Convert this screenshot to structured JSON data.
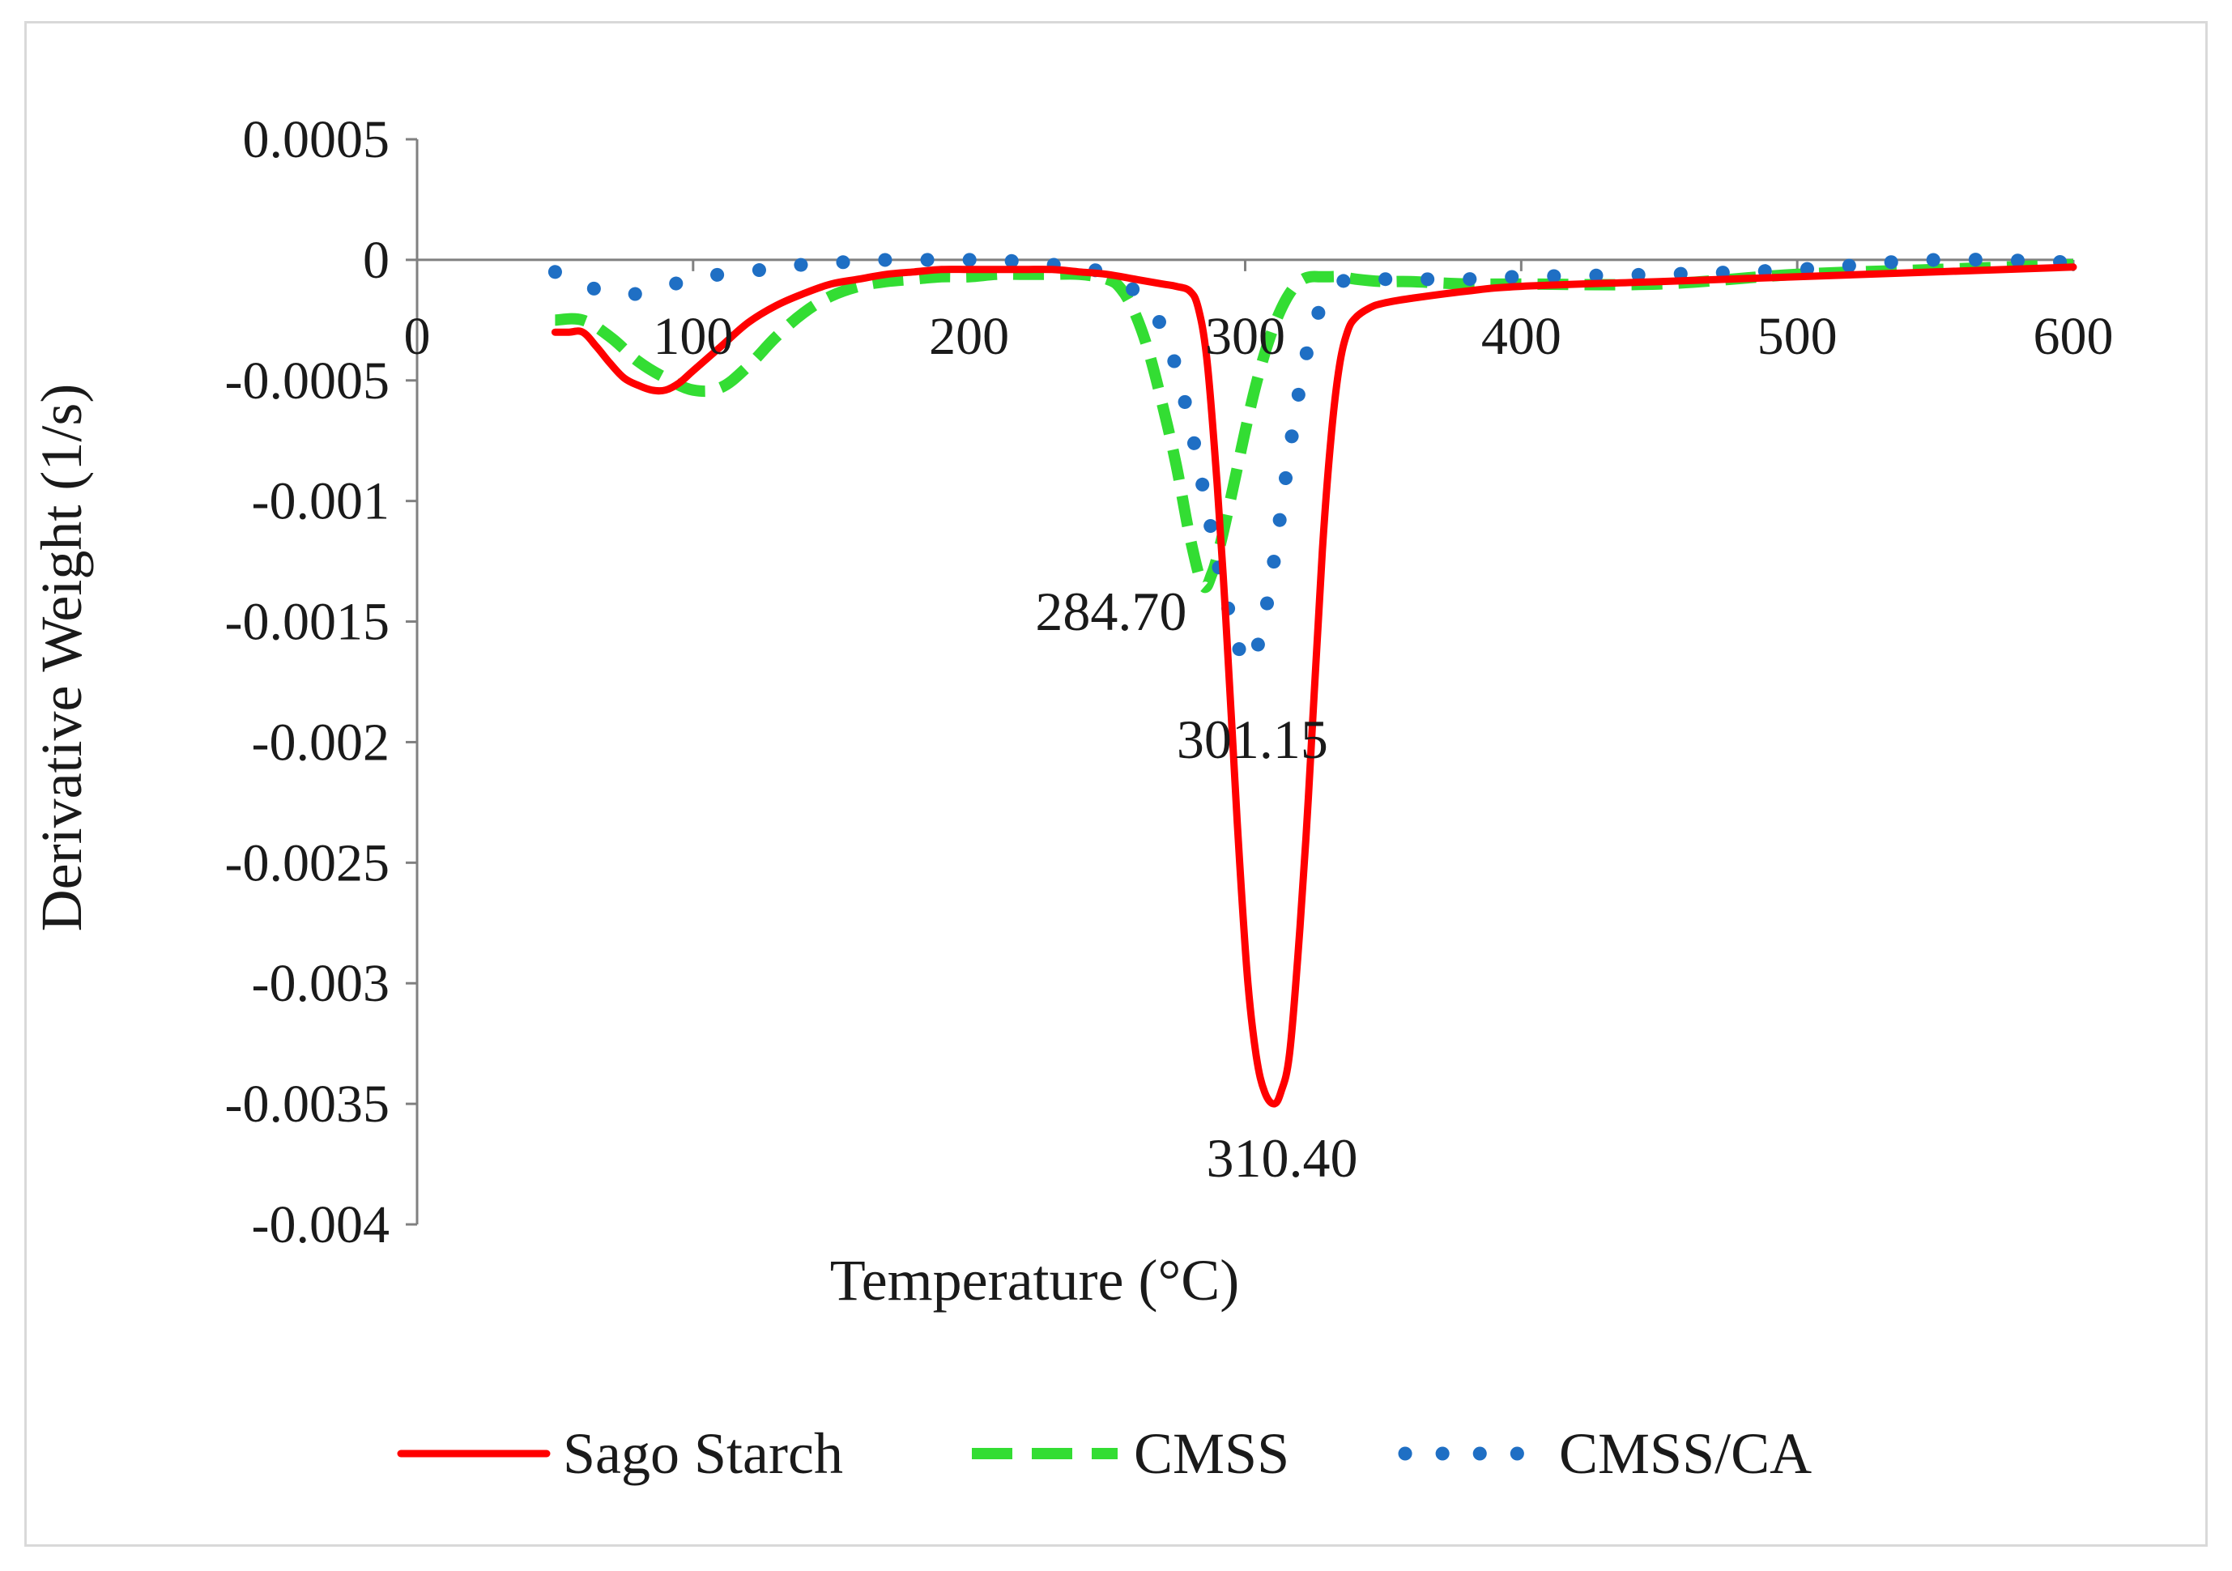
{
  "chart_data": {
    "type": "line",
    "title": "",
    "xlabel": "Temperature (°C)",
    "ylabel": "Derivative Weight (1/s)",
    "xlim": [
      0,
      600
    ],
    "ylim": [
      -0.004,
      0.0005
    ],
    "x_ticks": [
      "0",
      "100",
      "200",
      "300",
      "400",
      "500",
      "600"
    ],
    "y_ticks": [
      "0.0005",
      "0",
      "-0.0005",
      "-0.001",
      "-0.0015",
      "-0.002",
      "-0.0025",
      "-0.003",
      "-0.0035",
      "-0.004"
    ],
    "grid": false,
    "legend_position": "bottom",
    "series": [
      {
        "name": "Sago Starch",
        "color": "#ff0000",
        "style": "solid",
        "x": [
          50,
          55,
          60,
          65,
          70,
          75,
          80,
          85,
          90,
          95,
          100,
          110,
          120,
          130,
          140,
          150,
          160,
          170,
          180,
          190,
          200,
          210,
          220,
          230,
          240,
          250,
          260,
          270,
          275,
          280,
          283,
          286,
          289,
          292,
          295,
          298,
          301,
          304,
          307,
          310.4,
          313,
          316,
          319,
          322,
          325,
          328,
          331,
          334,
          337,
          340,
          345,
          350,
          360,
          380,
          400,
          450,
          500,
          550,
          600
        ],
        "y": [
          -0.0003,
          -0.0003,
          -0.0003,
          -0.00036,
          -0.00043,
          -0.00049,
          -0.00052,
          -0.00054,
          -0.00054,
          -0.00051,
          -0.00046,
          -0.00036,
          -0.00026,
          -0.00019,
          -0.00014,
          -0.0001,
          -8e-05,
          -6e-05,
          -5e-05,
          -4e-05,
          -4e-05,
          -4e-05,
          -4e-05,
          -4e-05,
          -5e-05,
          -6e-05,
          -8e-05,
          -0.0001,
          -0.00011,
          -0.00013,
          -0.0002,
          -0.0004,
          -0.0008,
          -0.0013,
          -0.0019,
          -0.0025,
          -0.003,
          -0.0033,
          -0.00345,
          -0.0035,
          -0.00345,
          -0.0033,
          -0.0029,
          -0.0024,
          -0.0018,
          -0.0012,
          -0.00075,
          -0.00045,
          -0.0003,
          -0.00024,
          -0.0002,
          -0.00018,
          -0.00016,
          -0.00013,
          -0.00011,
          -9e-05,
          -7e-05,
          -5e-05,
          -3e-05
        ]
      },
      {
        "name": "CMSS",
        "color": "#33dd33",
        "style": "dashed",
        "x": [
          50,
          60,
          70,
          80,
          90,
          100,
          110,
          120,
          130,
          140,
          150,
          160,
          170,
          180,
          190,
          200,
          210,
          220,
          230,
          240,
          250,
          255,
          260,
          265,
          270,
          275,
          280,
          284.7,
          288,
          291,
          294,
          297,
          300,
          303,
          306,
          309,
          312,
          315,
          318,
          321,
          324,
          327,
          330,
          335,
          340,
          350,
          360,
          380,
          400,
          450,
          500,
          550,
          600
        ],
        "y": [
          -0.00025,
          -0.00025,
          -0.00032,
          -0.00042,
          -0.00049,
          -0.00054,
          -0.00053,
          -0.00044,
          -0.00032,
          -0.00022,
          -0.00015,
          -0.00011,
          -9e-05,
          -8e-05,
          -7e-05,
          -7e-05,
          -6e-05,
          -6e-05,
          -6e-05,
          -6e-05,
          -8e-05,
          -0.00012,
          -0.00022,
          -0.00038,
          -0.0006,
          -0.00085,
          -0.00115,
          -0.00135,
          -0.0013,
          -0.00118,
          -0.00103,
          -0.00087,
          -0.00071,
          -0.00056,
          -0.00043,
          -0.00032,
          -0.00023,
          -0.00016,
          -0.00011,
          -8e-05,
          -7e-05,
          -7e-05,
          -7e-05,
          -7e-05,
          -8e-05,
          -9e-05,
          -9e-05,
          -0.0001,
          -0.0001,
          -0.0001,
          -6e-05,
          -4e-05,
          -2e-05
        ]
      },
      {
        "name": "CMSS/CA",
        "color": "#1f6fc4",
        "style": "dotted",
        "x": [
          50,
          60,
          70,
          80,
          90,
          100,
          110,
          120,
          130,
          140,
          150,
          160,
          170,
          180,
          190,
          200,
          210,
          220,
          230,
          240,
          250,
          260,
          270,
          275,
          280,
          285,
          290,
          295,
          298,
          301.15,
          304,
          307,
          310,
          313,
          316,
          319,
          322,
          325,
          328,
          331,
          335,
          340,
          350,
          360,
          380,
          400,
          450,
          500,
          550,
          600
        ],
        "y": [
          -5e-05,
          -0.0001,
          -0.00014,
          -0.00014,
          -0.00011,
          -8e-05,
          -6e-05,
          -5e-05,
          -3e-05,
          -2e-05,
          -1e-05,
          -1e-05,
          0,
          0,
          0,
          0,
          0,
          -1e-05,
          -2e-05,
          -3e-05,
          -6e-05,
          -0.00013,
          -0.00028,
          -0.00045,
          -0.00068,
          -0.00096,
          -0.00125,
          -0.0015,
          -0.00162,
          -0.00168,
          -0.00162,
          -0.00148,
          -0.00128,
          -0.00104,
          -0.0008,
          -0.00058,
          -0.0004,
          -0.00027,
          -0.00018,
          -0.00012,
          -9e-05,
          -8e-05,
          -8e-05,
          -8e-05,
          -8e-05,
          -7e-05,
          -6e-05,
          -4e-05,
          0,
          -1e-05
        ]
      }
    ],
    "annotations": [
      {
        "text": "284.70",
        "x": 284.7,
        "y": -0.00135,
        "series": "CMSS"
      },
      {
        "text": "301.15",
        "x": 301.15,
        "y": -0.00168,
        "series": "CMSS/CA"
      },
      {
        "text": "310.40",
        "x": 310.4,
        "y": -0.0035,
        "series": "Sago Starch"
      }
    ]
  }
}
